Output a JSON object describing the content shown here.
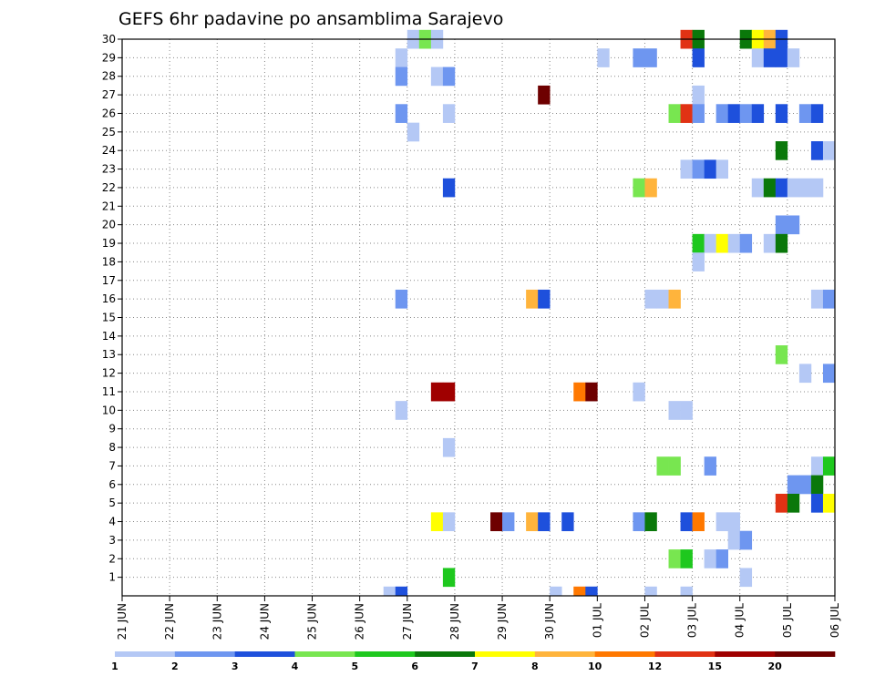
{
  "chart_data": {
    "type": "heatmap",
    "title": "GEFS 6hr padavine po ansamblima Sarajevo",
    "xlabel": "",
    "ylabel": "",
    "x_unit": "6h step from 21 JUN 00Z",
    "x_range": [
      0,
      60
    ],
    "y_range": [
      0,
      30
    ],
    "grid": true,
    "x_tick_labels": [
      "21 JUN",
      "22 JUN",
      "23 JUN",
      "24 JUN",
      "25 JUN",
      "26 JUN",
      "27 JUN",
      "28 JUN",
      "29 JUN",
      "30 JUN",
      "01 JUL",
      "02 JUL",
      "03 JUL",
      "04 JUL",
      "05 JUL",
      "06 JUL"
    ],
    "y_tick_labels": [
      "1",
      "2",
      "3",
      "4",
      "5",
      "6",
      "7",
      "8",
      "9",
      "10",
      "11",
      "12",
      "13",
      "14",
      "15",
      "16",
      "17",
      "18",
      "19",
      "20",
      "21",
      "22",
      "23",
      "24",
      "25",
      "26",
      "27",
      "28",
      "29",
      "30"
    ],
    "legend": {
      "placement": "bottom",
      "colors": [
        "#b4c8f5",
        "#6e96f0",
        "#1e50dc",
        "#78e650",
        "#1ec81e",
        "#0a780a",
        "#ffff00",
        "#ffb43c",
        "#ff7800",
        "#e13214",
        "#a00000",
        "#6e0000"
      ],
      "labels": [
        "1",
        "2",
        "3",
        "4",
        "5",
        "6",
        "7",
        "8",
        "10",
        "12",
        "15",
        "20"
      ]
    },
    "cells": [
      {
        "t": 24,
        "m": 30,
        "c": 0
      },
      {
        "t": 25,
        "m": 30,
        "c": 3
      },
      {
        "t": 26,
        "m": 30,
        "c": 0
      },
      {
        "t": 47,
        "m": 30,
        "c": 9
      },
      {
        "t": 48,
        "m": 30,
        "c": 5
      },
      {
        "t": 52,
        "m": 30,
        "c": 5
      },
      {
        "t": 53,
        "m": 30,
        "c": 6
      },
      {
        "t": 54,
        "m": 30,
        "c": 7
      },
      {
        "t": 55,
        "m": 30,
        "c": 2
      },
      {
        "t": 23,
        "m": 29,
        "c": 0
      },
      {
        "t": 40,
        "m": 29,
        "c": 0
      },
      {
        "t": 43,
        "m": 29,
        "c": 1
      },
      {
        "t": 44,
        "m": 29,
        "c": 1
      },
      {
        "t": 48,
        "m": 29,
        "c": 2
      },
      {
        "t": 53,
        "m": 29,
        "c": 0
      },
      {
        "t": 54,
        "m": 29,
        "c": 2
      },
      {
        "t": 55,
        "m": 29,
        "c": 2
      },
      {
        "t": 56,
        "m": 29,
        "c": 0
      },
      {
        "t": 23,
        "m": 28,
        "c": 1
      },
      {
        "t": 26,
        "m": 28,
        "c": 0
      },
      {
        "t": 27,
        "m": 28,
        "c": 1
      },
      {
        "t": 35,
        "m": 27,
        "c": 11
      },
      {
        "t": 48,
        "m": 27,
        "c": 0
      },
      {
        "t": 23,
        "m": 26,
        "c": 1
      },
      {
        "t": 27,
        "m": 26,
        "c": 0
      },
      {
        "t": 46,
        "m": 26,
        "c": 3
      },
      {
        "t": 47,
        "m": 26,
        "c": 9
      },
      {
        "t": 48,
        "m": 26,
        "c": 1
      },
      {
        "t": 50,
        "m": 26,
        "c": 1
      },
      {
        "t": 51,
        "m": 26,
        "c": 2
      },
      {
        "t": 52,
        "m": 26,
        "c": 1
      },
      {
        "t": 53,
        "m": 26,
        "c": 2
      },
      {
        "t": 55,
        "m": 26,
        "c": 2
      },
      {
        "t": 57,
        "m": 26,
        "c": 1
      },
      {
        "t": 58,
        "m": 26,
        "c": 2
      },
      {
        "t": 24,
        "m": 25,
        "c": 0
      },
      {
        "t": 55,
        "m": 24,
        "c": 5
      },
      {
        "t": 58,
        "m": 24,
        "c": 2
      },
      {
        "t": 59,
        "m": 24,
        "c": 0
      },
      {
        "t": 47,
        "m": 23,
        "c": 0
      },
      {
        "t": 48,
        "m": 23,
        "c": 1
      },
      {
        "t": 49,
        "m": 23,
        "c": 2
      },
      {
        "t": 50,
        "m": 23,
        "c": 0
      },
      {
        "t": 27,
        "m": 22,
        "c": 2
      },
      {
        "t": 43,
        "m": 22,
        "c": 3
      },
      {
        "t": 44,
        "m": 22,
        "c": 7
      },
      {
        "t": 53,
        "m": 22,
        "c": 0
      },
      {
        "t": 54,
        "m": 22,
        "c": 5
      },
      {
        "t": 55,
        "m": 22,
        "c": 2
      },
      {
        "t": 56,
        "m": 22,
        "c": 0
      },
      {
        "t": 57,
        "m": 22,
        "c": 0
      },
      {
        "t": 58,
        "m": 22,
        "c": 0
      },
      {
        "t": 55,
        "m": 20,
        "c": 1
      },
      {
        "t": 56,
        "m": 20,
        "c": 1
      },
      {
        "t": 48,
        "m": 19,
        "c": 4
      },
      {
        "t": 49,
        "m": 19,
        "c": 0
      },
      {
        "t": 50,
        "m": 19,
        "c": 6
      },
      {
        "t": 51,
        "m": 19,
        "c": 0
      },
      {
        "t": 52,
        "m": 19,
        "c": 1
      },
      {
        "t": 54,
        "m": 19,
        "c": 0
      },
      {
        "t": 55,
        "m": 19,
        "c": 5
      },
      {
        "t": 48,
        "m": 18,
        "c": 0
      },
      {
        "t": 23,
        "m": 16,
        "c": 1
      },
      {
        "t": 34,
        "m": 16,
        "c": 7
      },
      {
        "t": 35,
        "m": 16,
        "c": 2
      },
      {
        "t": 44,
        "m": 16,
        "c": 0
      },
      {
        "t": 45,
        "m": 16,
        "c": 0
      },
      {
        "t": 46,
        "m": 16,
        "c": 7
      },
      {
        "t": 58,
        "m": 16,
        "c": 0
      },
      {
        "t": 59,
        "m": 16,
        "c": 1
      },
      {
        "t": 55,
        "m": 13,
        "c": 3
      },
      {
        "t": 57,
        "m": 12,
        "c": 0
      },
      {
        "t": 59,
        "m": 12,
        "c": 1
      },
      {
        "t": 26,
        "m": 11,
        "c": 10
      },
      {
        "t": 27,
        "m": 11,
        "c": 10
      },
      {
        "t": 38,
        "m": 11,
        "c": 8
      },
      {
        "t": 39,
        "m": 11,
        "c": 11
      },
      {
        "t": 43,
        "m": 11,
        "c": 0
      },
      {
        "t": 23,
        "m": 10,
        "c": 0
      },
      {
        "t": 46,
        "m": 10,
        "c": 0
      },
      {
        "t": 47,
        "m": 10,
        "c": 0
      },
      {
        "t": 27,
        "m": 8,
        "c": 0
      },
      {
        "t": 45,
        "m": 7,
        "c": 3
      },
      {
        "t": 46,
        "m": 7,
        "c": 3
      },
      {
        "t": 49,
        "m": 7,
        "c": 1
      },
      {
        "t": 58,
        "m": 7,
        "c": 0
      },
      {
        "t": 59,
        "m": 7,
        "c": 4
      },
      {
        "t": 56,
        "m": 6,
        "c": 1
      },
      {
        "t": 57,
        "m": 6,
        "c": 1
      },
      {
        "t": 58,
        "m": 6,
        "c": 5
      },
      {
        "t": 55,
        "m": 5,
        "c": 9
      },
      {
        "t": 56,
        "m": 5,
        "c": 5
      },
      {
        "t": 58,
        "m": 5,
        "c": 2
      },
      {
        "t": 59,
        "m": 5,
        "c": 6
      },
      {
        "t": 26,
        "m": 4,
        "c": 6
      },
      {
        "t": 27,
        "m": 4,
        "c": 0
      },
      {
        "t": 31,
        "m": 4,
        "c": 11
      },
      {
        "t": 32,
        "m": 4,
        "c": 1
      },
      {
        "t": 34,
        "m": 4,
        "c": 7
      },
      {
        "t": 35,
        "m": 4,
        "c": 2
      },
      {
        "t": 37,
        "m": 4,
        "c": 2
      },
      {
        "t": 43,
        "m": 4,
        "c": 1
      },
      {
        "t": 44,
        "m": 4,
        "c": 5
      },
      {
        "t": 47,
        "m": 4,
        "c": 2
      },
      {
        "t": 48,
        "m": 4,
        "c": 8
      },
      {
        "t": 50,
        "m": 4,
        "c": 0
      },
      {
        "t": 51,
        "m": 4,
        "c": 0
      },
      {
        "t": 51,
        "m": 3,
        "c": 0
      },
      {
        "t": 52,
        "m": 3,
        "c": 1
      },
      {
        "t": 46,
        "m": 2,
        "c": 3
      },
      {
        "t": 47,
        "m": 2,
        "c": 4
      },
      {
        "t": 49,
        "m": 2,
        "c": 0
      },
      {
        "t": 50,
        "m": 2,
        "c": 1
      },
      {
        "t": 27,
        "m": 1,
        "c": 4
      },
      {
        "t": 52,
        "m": 1,
        "c": 0
      },
      {
        "t": 22,
        "m": 0,
        "c": 0
      },
      {
        "t": 23,
        "m": 0,
        "c": 2
      },
      {
        "t": 36,
        "m": 0,
        "c": 0
      },
      {
        "t": 38,
        "m": 0,
        "c": 8
      },
      {
        "t": 39,
        "m": 0,
        "c": 2
      },
      {
        "t": 44,
        "m": 0,
        "c": 0
      },
      {
        "t": 47,
        "m": 0,
        "c": 0
      }
    ]
  }
}
